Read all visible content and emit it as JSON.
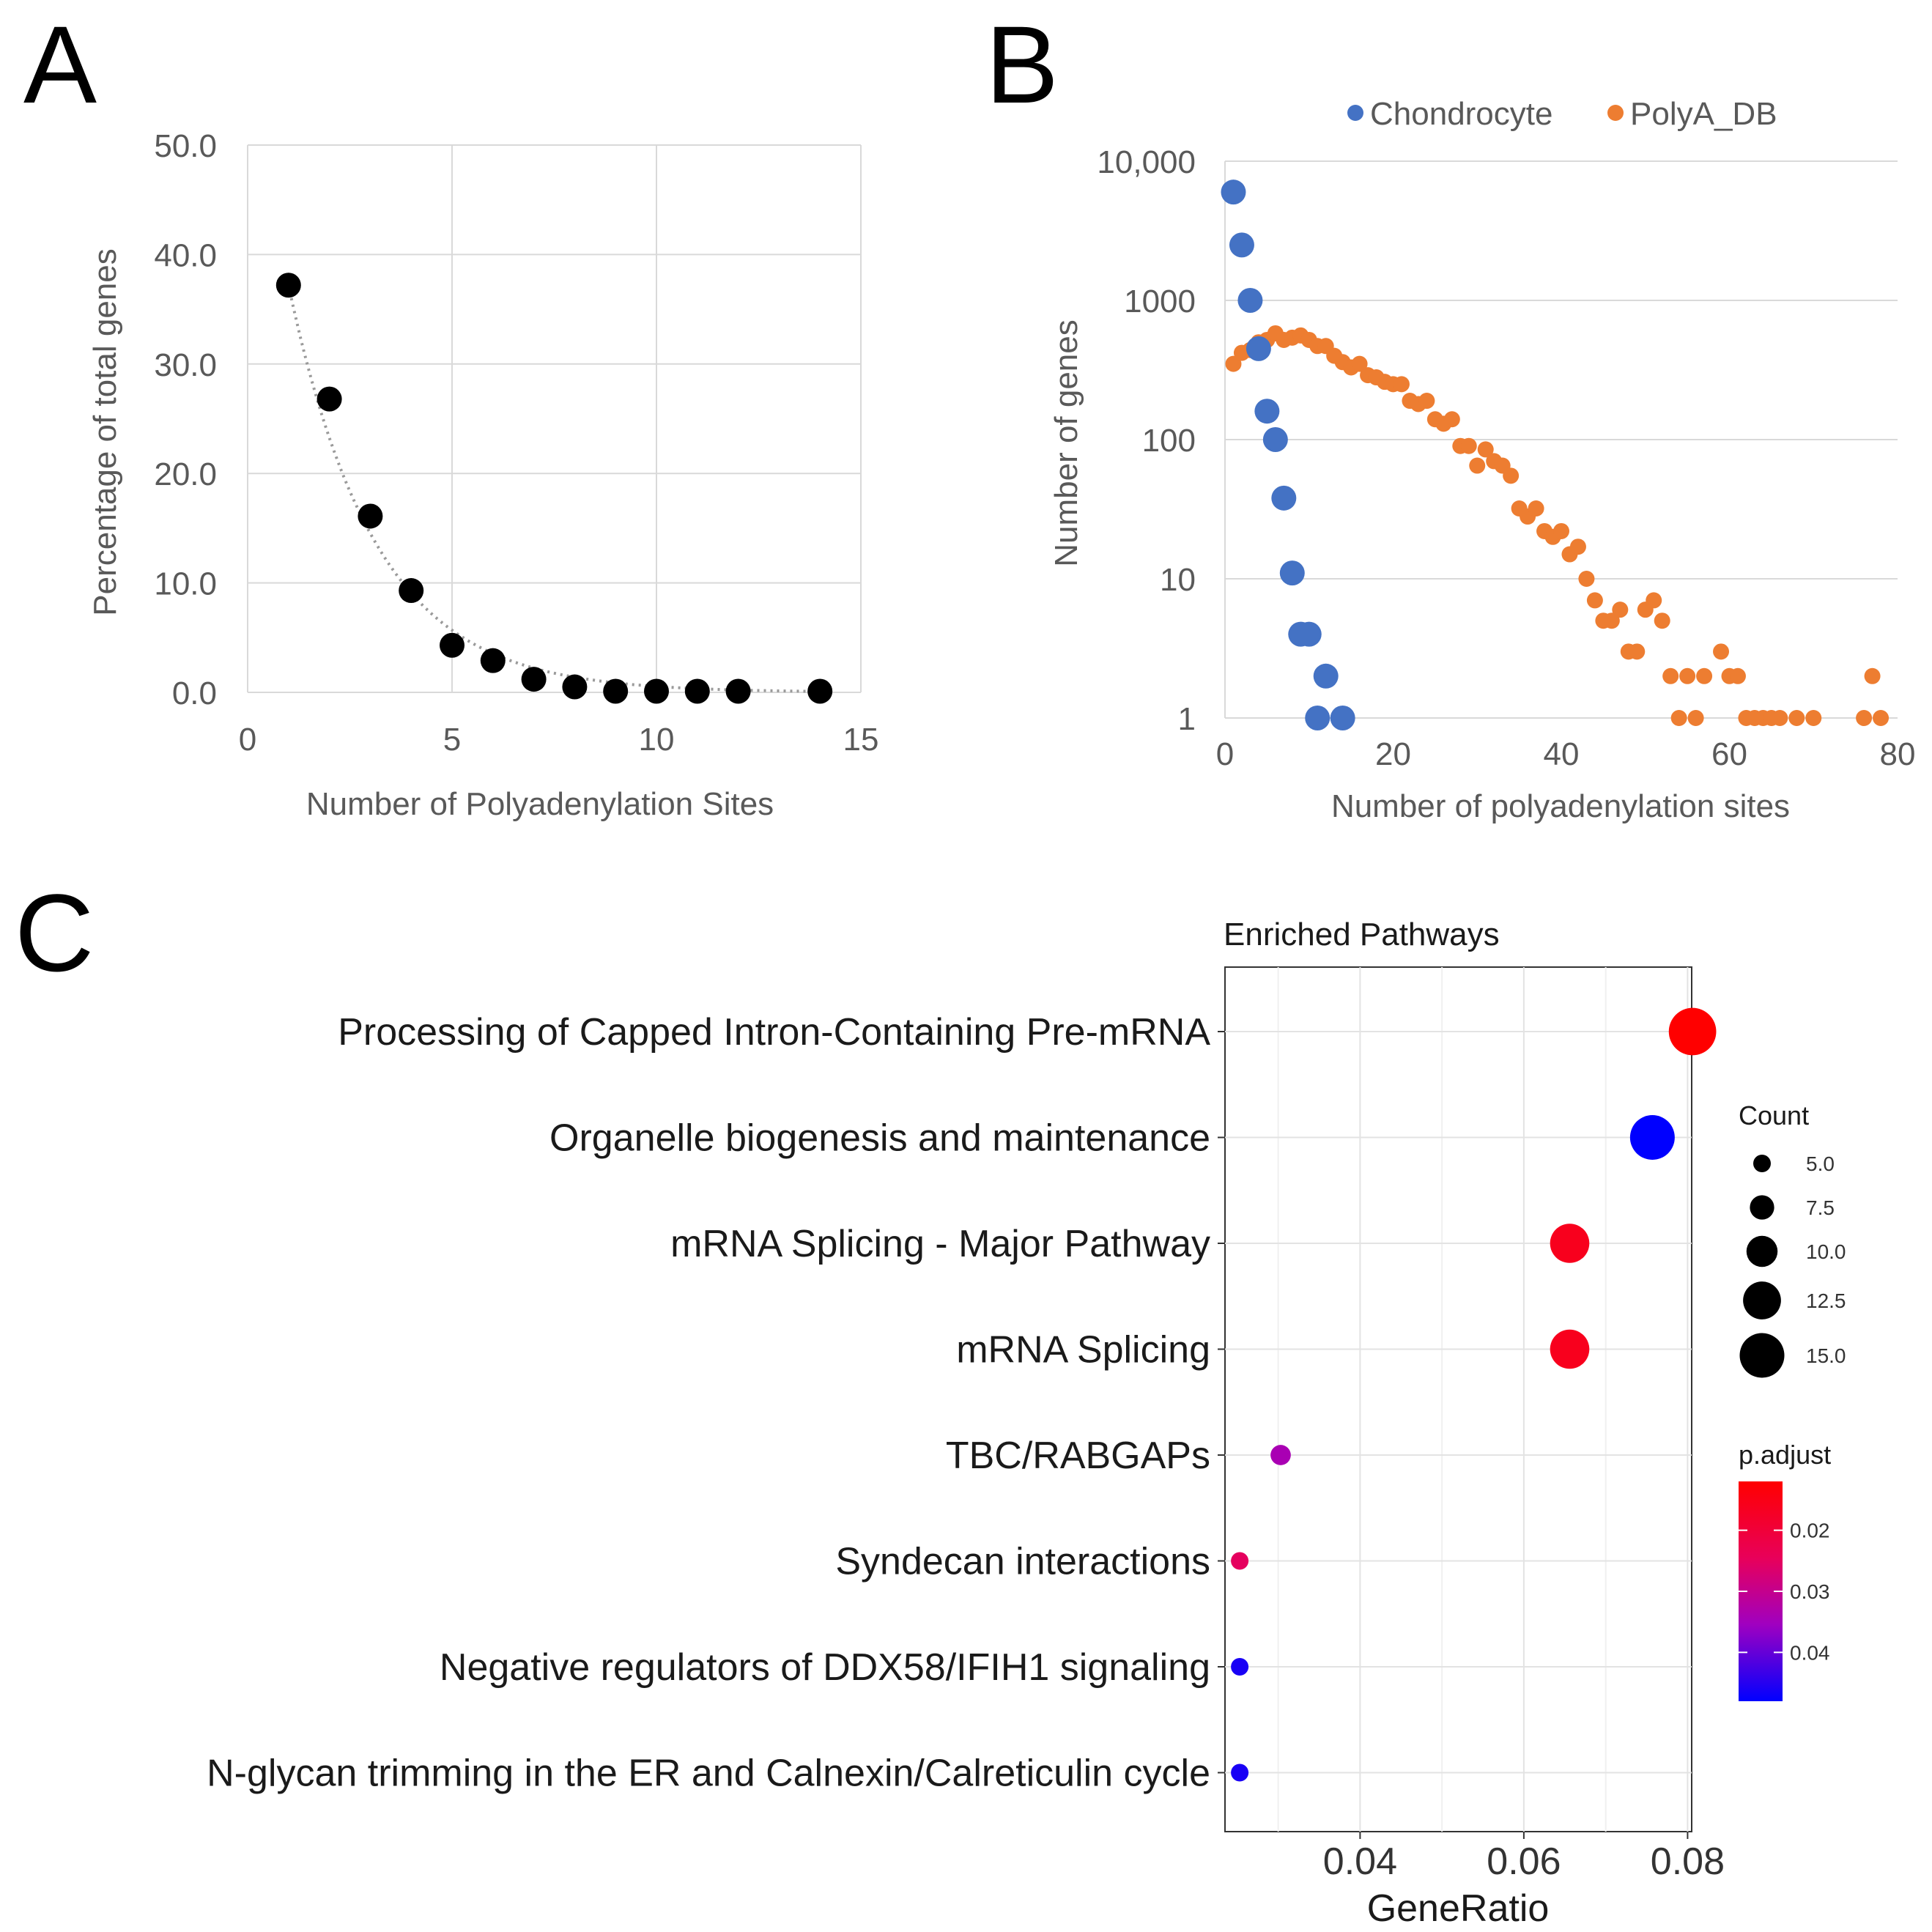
{
  "panels": {
    "a": "A",
    "b": "B",
    "c": "C"
  },
  "colors": {
    "chondrocyte": "#4472c4",
    "polya_db": "#ed7d31",
    "black": "#000000",
    "padj_high": "#ff0000",
    "padj_low": "#0000ff"
  },
  "chart_data": [
    {
      "id": "A",
      "type": "scatter",
      "xlabel": "Number of Polyadenylation Sites",
      "ylabel": "Percentage of total genes",
      "xlim": [
        0,
        15
      ],
      "ylim": [
        0,
        50
      ],
      "xticks": [
        "0",
        "5",
        "10",
        "15"
      ],
      "yticks": [
        "0.0",
        "10.0",
        "20.0",
        "30.0",
        "40.0",
        "50.0"
      ],
      "trendline": "exponential, dotted grey",
      "points": [
        {
          "x": 1,
          "y": 37.2
        },
        {
          "x": 2,
          "y": 26.8
        },
        {
          "x": 3,
          "y": 16.1
        },
        {
          "x": 4,
          "y": 9.3
        },
        {
          "x": 5,
          "y": 4.3
        },
        {
          "x": 6,
          "y": 2.9
        },
        {
          "x": 7,
          "y": 1.2
        },
        {
          "x": 8,
          "y": 0.5
        },
        {
          "x": 9,
          "y": 0.1
        },
        {
          "x": 10,
          "y": 0.1
        },
        {
          "x": 11,
          "y": 0.1
        },
        {
          "x": 12,
          "y": 0.1
        },
        {
          "x": 14,
          "y": 0.1
        }
      ]
    },
    {
      "id": "B",
      "type": "scatter",
      "xlabel": "Number of polyadenylation sites",
      "ylabel": "Number of genes",
      "yscale": "log",
      "xlim": [
        0,
        80
      ],
      "ylim": [
        1,
        10000
      ],
      "xticks": [
        "0",
        "20",
        "40",
        "60",
        "80"
      ],
      "yticks": [
        "1",
        "10",
        "100",
        "1000",
        "10,000"
      ],
      "legend": [
        "Chondrocyte",
        "PolyA_DB"
      ],
      "series": [
        {
          "name": "Chondrocyte",
          "points": [
            [
              1,
              6000
            ],
            [
              2,
              2500
            ],
            [
              3,
              1000
            ],
            [
              4,
              450
            ],
            [
              5,
              160
            ],
            [
              6,
              100
            ],
            [
              7,
              38
            ],
            [
              8,
              11
            ],
            [
              9,
              4
            ],
            [
              10,
              4
            ],
            [
              11,
              1
            ],
            [
              12,
              2
            ],
            [
              14,
              1
            ]
          ]
        },
        {
          "name": "PolyA_DB",
          "points": [
            [
              1,
              350
            ],
            [
              2,
              420
            ],
            [
              3,
              440
            ],
            [
              4,
              500
            ],
            [
              5,
              520
            ],
            [
              6,
              580
            ],
            [
              7,
              520
            ],
            [
              8,
              540
            ],
            [
              9,
              560
            ],
            [
              10,
              520
            ],
            [
              11,
              470
            ],
            [
              12,
              470
            ],
            [
              13,
              400
            ],
            [
              14,
              360
            ],
            [
              15,
              330
            ],
            [
              16,
              350
            ],
            [
              17,
              290
            ],
            [
              18,
              280
            ],
            [
              19,
              260
            ],
            [
              20,
              250
            ],
            [
              21,
              250
            ],
            [
              22,
              190
            ],
            [
              23,
              180
            ],
            [
              24,
              190
            ],
            [
              25,
              140
            ],
            [
              26,
              130
            ],
            [
              27,
              140
            ],
            [
              28,
              90
            ],
            [
              29,
              90
            ],
            [
              30,
              65
            ],
            [
              31,
              85
            ],
            [
              32,
              70
            ],
            [
              33,
              65
            ],
            [
              34,
              55
            ],
            [
              35,
              32
            ],
            [
              36,
              28
            ],
            [
              37,
              32
            ],
            [
              38,
              22
            ],
            [
              39,
              20
            ],
            [
              40,
              22
            ],
            [
              41,
              15
            ],
            [
              42,
              17
            ],
            [
              43,
              10
            ],
            [
              44,
              7
            ],
            [
              45,
              5
            ],
            [
              46,
              5
            ],
            [
              47,
              6
            ],
            [
              48,
              3
            ],
            [
              49,
              3
            ],
            [
              50,
              6
            ],
            [
              51,
              7
            ],
            [
              52,
              5
            ],
            [
              53,
              2
            ],
            [
              54,
              1
            ],
            [
              55,
              2
            ],
            [
              56,
              1
            ],
            [
              57,
              2
            ],
            [
              59,
              3
            ],
            [
              60,
              2
            ],
            [
              61,
              2
            ],
            [
              62,
              1
            ],
            [
              63,
              1
            ],
            [
              64,
              1
            ],
            [
              65,
              1
            ],
            [
              66,
              1
            ],
            [
              68,
              1
            ],
            [
              70,
              1
            ],
            [
              76,
              1
            ],
            [
              77,
              2
            ],
            [
              78,
              1
            ]
          ]
        }
      ]
    },
    {
      "id": "C",
      "type": "scatter",
      "title": "Enriched Pathways",
      "xlabel": "GeneRatio",
      "xlim": [
        0.0235,
        0.0805
      ],
      "xticks": [
        "0.04",
        "0.06",
        "0.08"
      ],
      "categories": [
        "Processing of Capped Intron-Containing Pre-mRNA",
        "Organelle biogenesis and maintenance",
        "mRNA Splicing - Major Pathway",
        "mRNA Splicing",
        "TBC/RABGAPs",
        "Syndecan interactions",
        "Negative regulators of DDX58/IFIH1 signaling",
        "N-glycan trimming in the ER and Calnexin/Calreticulin cycle"
      ],
      "points": [
        {
          "gene_ratio": 0.0806,
          "count": 16,
          "p_adjust": 0.012
        },
        {
          "gene_ratio": 0.0757,
          "count": 15,
          "p_adjust": 0.048
        },
        {
          "gene_ratio": 0.0656,
          "count": 13,
          "p_adjust": 0.016
        },
        {
          "gene_ratio": 0.0656,
          "count": 13,
          "p_adjust": 0.016
        },
        {
          "gene_ratio": 0.0303,
          "count": 6,
          "p_adjust": 0.034
        },
        {
          "gene_ratio": 0.0253,
          "count": 5,
          "p_adjust": 0.025
        },
        {
          "gene_ratio": 0.0253,
          "count": 5,
          "p_adjust": 0.046
        },
        {
          "gene_ratio": 0.0253,
          "count": 5,
          "p_adjust": 0.046
        }
      ],
      "size_legend_title": "Count",
      "size_legend": [
        "5.0",
        "7.5",
        "10.0",
        "12.5",
        "15.0"
      ],
      "color_legend_title": "p.adjust",
      "color_legend": [
        "0.02",
        "0.03",
        "0.04"
      ],
      "color_range": [
        0.012,
        0.048
      ]
    }
  ]
}
